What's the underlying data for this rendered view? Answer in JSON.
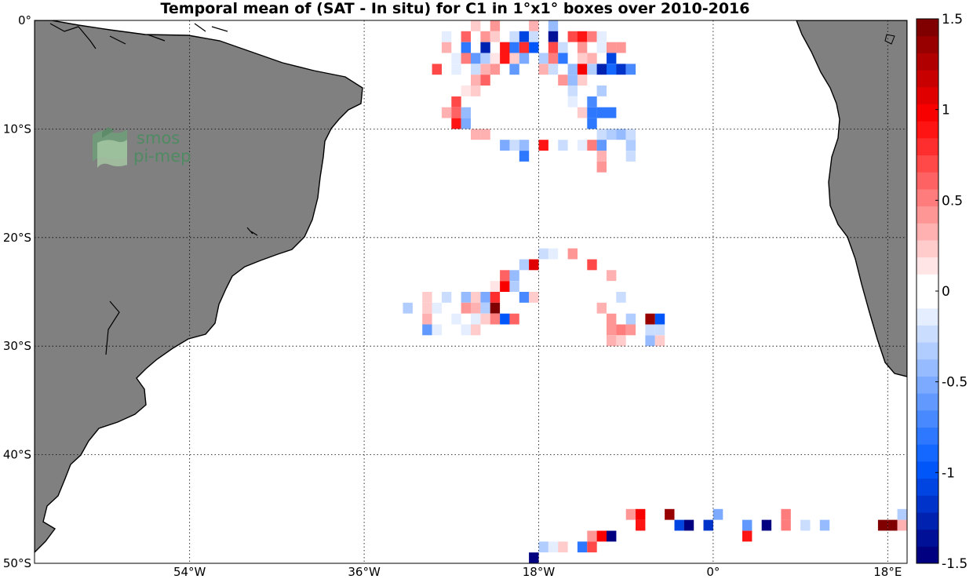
{
  "chart_data": {
    "type": "heatmap",
    "title": "Temporal mean of (SAT - In situ) for C1 in 1°x1° boxes over 2010-2016",
    "xlabel": "",
    "ylabel": "",
    "xlim": [
      -70,
      20
    ],
    "ylim": [
      -50,
      0
    ],
    "x_ticks": [
      {
        "value": -54,
        "label": "54°W"
      },
      {
        "value": -36,
        "label": "36°W"
      },
      {
        "value": -18,
        "label": "18°W"
      },
      {
        "value": 0,
        "label": "0°"
      },
      {
        "value": 18,
        "label": "18°E"
      }
    ],
    "y_ticks": [
      {
        "value": 0,
        "label": "0°"
      },
      {
        "value": -10,
        "label": "10°S"
      },
      {
        "value": -20,
        "label": "20°S"
      },
      {
        "value": -30,
        "label": "30°S"
      },
      {
        "value": -40,
        "label": "40°S"
      },
      {
        "value": -50,
        "label": "50°S"
      }
    ],
    "grid": true,
    "colorbar": {
      "range": [
        -1.5,
        1.5
      ],
      "levels": 32,
      "position": "right",
      "tick_labels": [
        {
          "value": 1.5,
          "label": "1.5"
        },
        {
          "value": 1,
          "label": "1"
        },
        {
          "value": 0.5,
          "label": "0.5"
        },
        {
          "value": 0,
          "label": "0"
        },
        {
          "value": -0.5,
          "label": "-0.5"
        },
        {
          "value": -1,
          "label": "-1"
        },
        {
          "value": -1.5,
          "label": "-1.5"
        }
      ]
    },
    "land_color": "#808080",
    "cells": [
      [
        -24.5,
        -0.5,
        0.2
      ],
      [
        -22.5,
        -0.5,
        0.4
      ],
      [
        -18.5,
        -0.5,
        0.3
      ],
      [
        -16.5,
        -0.5,
        -0.4
      ],
      [
        -27.5,
        -1.5,
        -0.1
      ],
      [
        -25.5,
        -1.5,
        0.6
      ],
      [
        -23.5,
        -1.5,
        0.4
      ],
      [
        -22.5,
        -1.5,
        0.2
      ],
      [
        -20.5,
        -1.5,
        -0.2
      ],
      [
        -19.5,
        -1.5,
        -1.1
      ],
      [
        -18.5,
        -1.5,
        -0.2
      ],
      [
        -16.5,
        -1.5,
        -1.4
      ],
      [
        -14.5,
        -1.5,
        0.7
      ],
      [
        -13.5,
        -1.5,
        0.9
      ],
      [
        -12.5,
        -1.5,
        0.5
      ],
      [
        -11.5,
        -1.5,
        -0.1
      ],
      [
        -27.5,
        -2.5,
        0.3
      ],
      [
        -25.5,
        -2.5,
        -0.8
      ],
      [
        -23.5,
        -2.5,
        -1.3
      ],
      [
        -21.5,
        -2.5,
        0.9
      ],
      [
        -20.5,
        -2.5,
        -0.8
      ],
      [
        -19.5,
        -2.5,
        0.8
      ],
      [
        -18.5,
        -2.5,
        -1.0
      ],
      [
        -16.5,
        -2.5,
        0.7
      ],
      [
        -15.5,
        -2.5,
        -0.2
      ],
      [
        -13.5,
        -2.5,
        0.4
      ],
      [
        -11.5,
        -2.5,
        -0.1
      ],
      [
        -10.5,
        -2.5,
        0.4
      ],
      [
        -9.5,
        -2.5,
        0.4
      ],
      [
        -26.5,
        -3.5,
        -0.1
      ],
      [
        -25.5,
        -3.5,
        0.5
      ],
      [
        -24.5,
        -3.5,
        -0.6
      ],
      [
        -23.5,
        -3.5,
        -0.3
      ],
      [
        -22.5,
        -3.5,
        0.1
      ],
      [
        -21.5,
        -3.5,
        0.9
      ],
      [
        -20.5,
        -3.5,
        0.2
      ],
      [
        -19.5,
        -3.5,
        -0.5
      ],
      [
        -17.5,
        -3.5,
        -0.3
      ],
      [
        -16.5,
        -3.5,
        0.5
      ],
      [
        -15.5,
        -3.5,
        -0.8
      ],
      [
        -13.5,
        -3.5,
        0.2
      ],
      [
        -12.5,
        -3.5,
        0.3
      ],
      [
        -10.5,
        -3.5,
        -1.1
      ],
      [
        -28.5,
        -4.5,
        0.7
      ],
      [
        -26.5,
        -4.5,
        -0.1
      ],
      [
        -24.5,
        -4.5,
        -0.2
      ],
      [
        -23.5,
        -4.5,
        0.3
      ],
      [
        -22.5,
        -4.5,
        0.4
      ],
      [
        -20.5,
        -4.5,
        -0.6
      ],
      [
        -17.5,
        -4.5,
        0.3
      ],
      [
        -16.5,
        -4.5,
        -0.2
      ],
      [
        -14.5,
        -4.5,
        -0.4
      ],
      [
        -13.5,
        -4.5,
        1.0
      ],
      [
        -12.5,
        -4.5,
        -0.3
      ],
      [
        -11.5,
        -4.5,
        -1.3
      ],
      [
        -10.5,
        -4.5,
        -0.9
      ],
      [
        -9.5,
        -4.5,
        -1.2
      ],
      [
        -8.5,
        -4.5,
        -0.7
      ],
      [
        -24.5,
        -5.5,
        0.3
      ],
      [
        -23.5,
        -5.5,
        0.6
      ],
      [
        -15.5,
        -5.5,
        0.4
      ],
      [
        -14.5,
        -5.5,
        -0.4
      ],
      [
        -13.5,
        -5.5,
        0.2
      ],
      [
        -25.5,
        -6.5,
        0.1
      ],
      [
        -24.5,
        -6.5,
        0.2
      ],
      [
        -14.5,
        -6.5,
        -0.2
      ],
      [
        -11.5,
        -6.5,
        -0.3
      ],
      [
        -26.5,
        -7.5,
        0.7
      ],
      [
        -14.5,
        -7.5,
        -0.1
      ],
      [
        -12.5,
        -7.5,
        -0.7
      ],
      [
        -27.5,
        -8.5,
        0.3
      ],
      [
        -26.5,
        -8.5,
        0.6
      ],
      [
        -25.5,
        -8.5,
        -0.4
      ],
      [
        -13.5,
        -8.5,
        0.2
      ],
      [
        -12.5,
        -8.5,
        -0.8
      ],
      [
        -11.5,
        -8.5,
        -0.8
      ],
      [
        -10.5,
        -8.5,
        -0.8
      ],
      [
        -26.5,
        -9.5,
        0.9
      ],
      [
        -25.5,
        -9.5,
        -0.5
      ],
      [
        -12.5,
        -9.5,
        -0.8
      ],
      [
        -24.5,
        -10.5,
        0.3
      ],
      [
        -23.5,
        -10.5,
        0.3
      ],
      [
        -11.5,
        -10.5,
        -0.2
      ],
      [
        -10.5,
        -10.5,
        -0.3
      ],
      [
        -9.5,
        -10.5,
        -0.4
      ],
      [
        -8.5,
        -10.5,
        -0.2
      ],
      [
        -21.5,
        -11.5,
        -0.5
      ],
      [
        -20.5,
        -11.5,
        -0.2
      ],
      [
        -19.5,
        -11.5,
        -0.4
      ],
      [
        -17.5,
        -11.5,
        0.9
      ],
      [
        -15.5,
        -11.5,
        -0.2
      ],
      [
        -13.5,
        -11.5,
        -0.1
      ],
      [
        -12.5,
        -11.5,
        0.5
      ],
      [
        -11.5,
        -11.5,
        -0.6
      ],
      [
        -8.5,
        -11.5,
        -0.3
      ],
      [
        -19.5,
        -12.5,
        -0.8
      ],
      [
        -11.5,
        -12.5,
        0.3
      ],
      [
        -8.5,
        -12.5,
        -0.2
      ],
      [
        -11.5,
        -13.5,
        0.4
      ],
      [
        -17.5,
        -21.5,
        -0.2
      ],
      [
        -16.5,
        -21.5,
        -0.1
      ],
      [
        -14.5,
        -21.5,
        0.4
      ],
      [
        -19.5,
        -22.5,
        -0.3
      ],
      [
        -18.5,
        -22.5,
        1.1
      ],
      [
        -12.5,
        -22.5,
        0.7
      ],
      [
        -21.5,
        -23.5,
        0.6
      ],
      [
        -20.5,
        -23.5,
        -0.4
      ],
      [
        -10.5,
        -23.5,
        0.3
      ],
      [
        -22.5,
        -24.5,
        0.1
      ],
      [
        -21.5,
        -24.5,
        1.0
      ],
      [
        -20.5,
        -24.5,
        -0.3
      ],
      [
        -29.5,
        -25.5,
        0.2
      ],
      [
        -27.5,
        -25.5,
        -0.2
      ],
      [
        -25.5,
        -25.5,
        -0.4
      ],
      [
        -24.5,
        -25.5,
        0.2
      ],
      [
        -23.5,
        -25.5,
        -0.5
      ],
      [
        -22.5,
        -25.5,
        0.8
      ],
      [
        -19.5,
        -25.5,
        -0.7
      ],
      [
        -18.5,
        -25.5,
        0.2
      ],
      [
        -9.5,
        -25.5,
        -0.2
      ],
      [
        -31.5,
        -26.5,
        -0.3
      ],
      [
        -29.5,
        -26.5,
        0.2
      ],
      [
        -28.5,
        -26.5,
        -0.1
      ],
      [
        -25.5,
        -26.5,
        0.4
      ],
      [
        -24.5,
        -26.5,
        0.3
      ],
      [
        -23.5,
        -26.5,
        -0.3
      ],
      [
        -22.5,
        -26.5,
        1.5
      ],
      [
        -11.5,
        -26.5,
        0.3
      ],
      [
        -29.5,
        -27.5,
        0.3
      ],
      [
        -26.5,
        -27.5,
        -0.1
      ],
      [
        -24.5,
        -27.5,
        -0.1
      ],
      [
        -23.5,
        -27.5,
        0.2
      ],
      [
        -22.5,
        -27.5,
        0.5
      ],
      [
        -21.5,
        -27.5,
        -1.0
      ],
      [
        -20.5,
        -27.5,
        0.6
      ],
      [
        -10.5,
        -27.5,
        0.4
      ],
      [
        -8.5,
        -27.5,
        -0.3
      ],
      [
        -6.5,
        -27.5,
        1.4
      ],
      [
        -5.5,
        -27.5,
        -1.0
      ],
      [
        -29.5,
        -28.5,
        -0.6
      ],
      [
        -28.5,
        -28.5,
        -0.1
      ],
      [
        -25.5,
        -28.5,
        -0.1
      ],
      [
        -24.5,
        -28.5,
        0.2
      ],
      [
        -10.5,
        -28.5,
        0.4
      ],
      [
        -9.5,
        -28.5,
        0.5
      ],
      [
        -8.5,
        -28.5,
        0.4
      ],
      [
        -6.5,
        -28.5,
        -0.2
      ],
      [
        -5.5,
        -28.5,
        -0.2
      ],
      [
        -10.5,
        -29.5,
        0.3
      ],
      [
        -9.5,
        -29.5,
        0.2
      ],
      [
        -6.5,
        -29.5,
        -0.4
      ],
      [
        -5.5,
        -29.5,
        0.2
      ],
      [
        -8.5,
        -45.5,
        0.4
      ],
      [
        -7.5,
        -45.5,
        1.0
      ],
      [
        -4.5,
        -45.5,
        1.4
      ],
      [
        0.5,
        -45.5,
        -0.5
      ],
      [
        7.5,
        -45.5,
        0.5
      ],
      [
        19.5,
        -45.5,
        -0.3
      ],
      [
        -7.5,
        -46.5,
        0.9
      ],
      [
        -3.5,
        -46.5,
        -1.1
      ],
      [
        -2.5,
        -46.5,
        -1.5
      ],
      [
        -0.5,
        -46.5,
        -1.2
      ],
      [
        3.5,
        -46.5,
        -0.6
      ],
      [
        5.5,
        -46.5,
        -1.5
      ],
      [
        7.5,
        -46.5,
        0.5
      ],
      [
        9.5,
        -46.5,
        -0.2
      ],
      [
        11.5,
        -46.5,
        -0.4
      ],
      [
        17.5,
        -46.5,
        1.5
      ],
      [
        18.5,
        -46.5,
        1.5
      ],
      [
        19.5,
        -46.5,
        0.3
      ],
      [
        -12.5,
        -47.5,
        0.4
      ],
      [
        -11.5,
        -47.5,
        1.0
      ],
      [
        -10.5,
        -47.5,
        -1.5
      ],
      [
        3.5,
        -47.5,
        0.9
      ],
      [
        -17.5,
        -48.5,
        -0.3
      ],
      [
        -16.5,
        -48.5,
        -0.1
      ],
      [
        -15.5,
        -48.5,
        0.2
      ],
      [
        -13.5,
        -48.5,
        -0.8
      ],
      [
        -12.5,
        -48.5,
        0.7
      ],
      [
        -18.5,
        -49.5,
        -1.5
      ]
    ]
  },
  "logo": {
    "line1": "smos",
    "line2": "pi-mep",
    "icon": "wave-logo-icon"
  }
}
